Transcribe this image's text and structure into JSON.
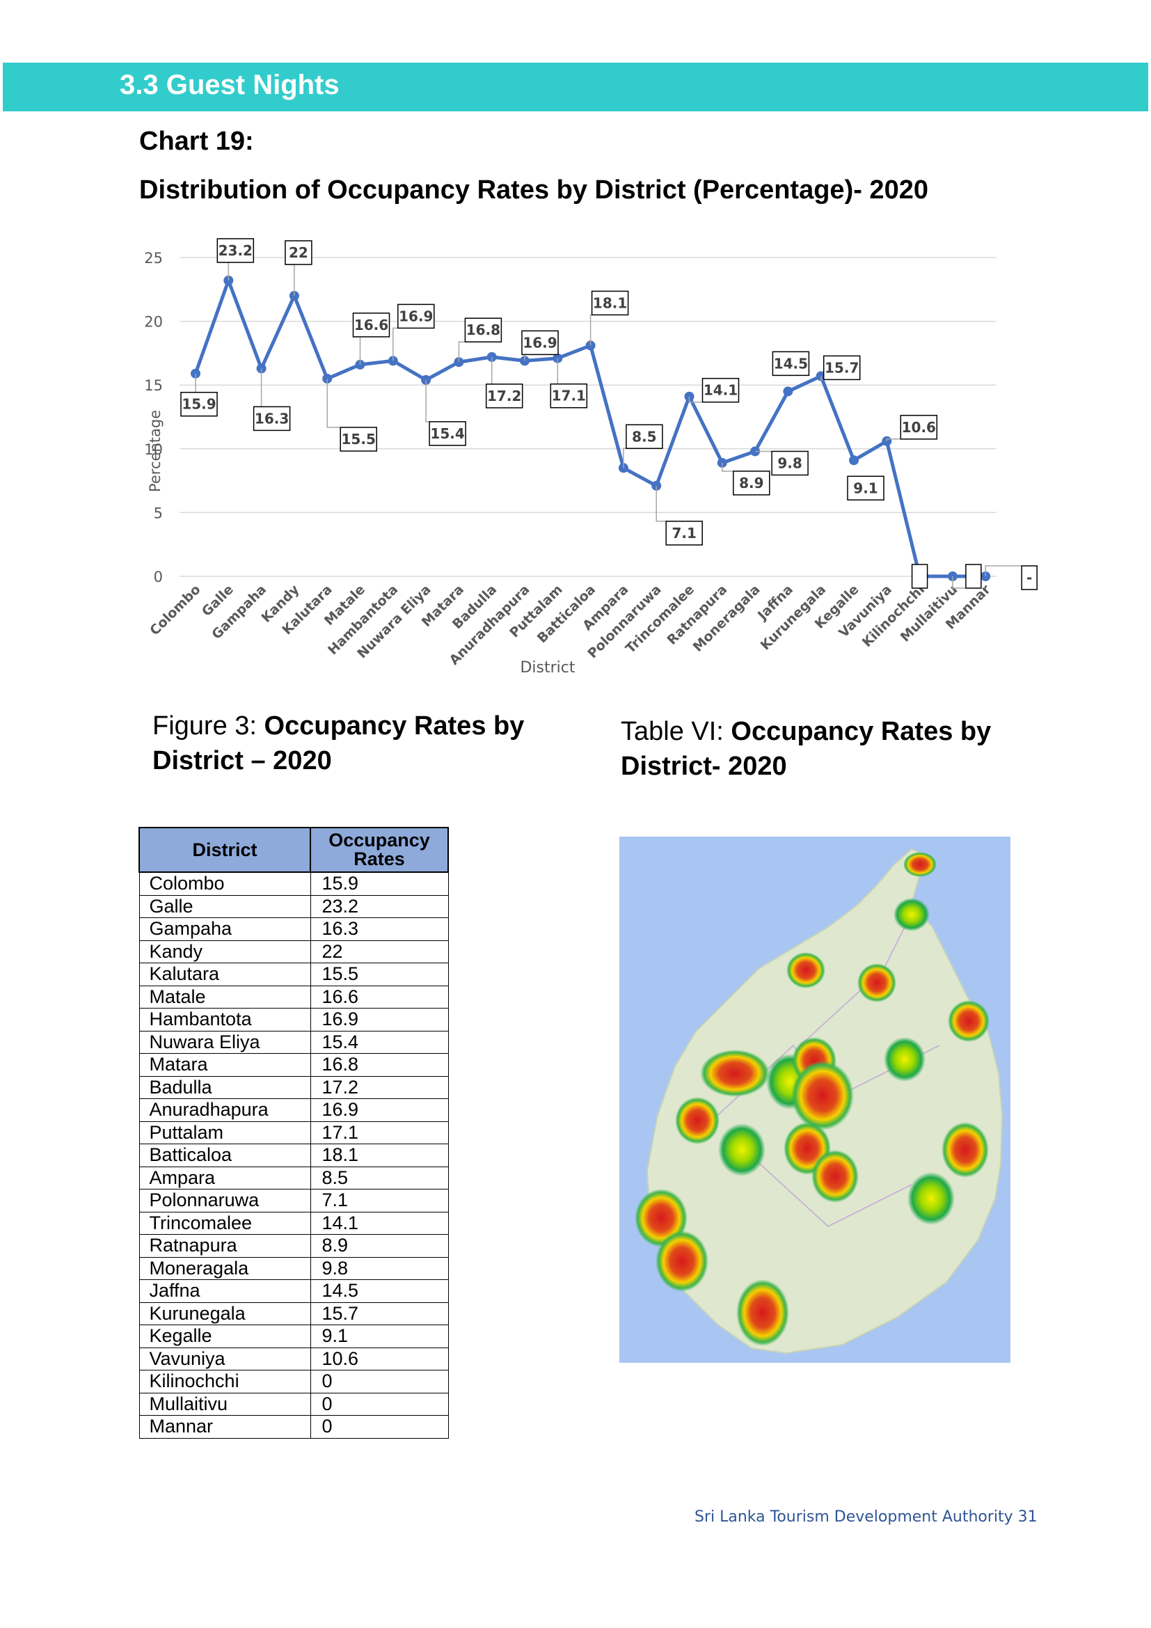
{
  "section": {
    "title": "3.3 Guest Nights"
  },
  "chart_heading": {
    "number": "Chart 19:",
    "title": "Distribution of Occupancy Rates by District (Percentage)- 2020"
  },
  "chart_data": {
    "type": "line",
    "xlabel": "District",
    "ylabel": "Percentage",
    "ylim": [
      0,
      25
    ],
    "yticks": [
      0,
      5,
      10,
      15,
      20,
      25
    ],
    "grid": true,
    "line_color": "#4472c4",
    "categories": [
      "Colombo",
      "Galle",
      "Gampaha",
      "Kandy",
      "Kalutara",
      "Matale",
      "Hambantota",
      "Nuwara Eliya",
      "Matara",
      "Badulla",
      "Anuradhapura",
      "Puttalam",
      "Batticaloa",
      "Ampara",
      "Polonnaruwa",
      "Trincomalee",
      "Ratnapura",
      "Moneragala",
      "Jaffna",
      "Kurunegala",
      "Kegalle",
      "Vavuniya",
      "Kilinochchi",
      "Mullaitivu",
      "Mannar"
    ],
    "values": [
      15.9,
      23.2,
      16.3,
      22,
      15.5,
      16.6,
      16.9,
      15.4,
      16.8,
      17.2,
      16.9,
      17.1,
      18.1,
      8.5,
      7.1,
      14.1,
      8.9,
      9.8,
      14.5,
      15.7,
      9.1,
      10.6,
      0,
      0,
      0
    ],
    "data_labels": [
      "15.9",
      "23.2",
      "16.3",
      "22",
      "15.5",
      "16.6",
      "16.9",
      "15.4",
      "16.8",
      "17.2",
      "16.9",
      "17.1",
      "18.1",
      "8.5",
      "7.1",
      "14.1",
      "8.9",
      "9.8",
      "14.5",
      "15.7",
      "9.1",
      "10.6",
      "",
      "",
      "-"
    ]
  },
  "captions": {
    "figure_prefix": "Figure 3: ",
    "figure_bold": "Occupancy Rates by District – 2020",
    "table_prefix": "Table VI: ",
    "table_bold": "Occupancy Rates by District- 2020"
  },
  "table": {
    "headers": [
      "District",
      "Occupancy Rates"
    ],
    "rows": [
      [
        "Colombo",
        "15.9"
      ],
      [
        "Galle",
        "23.2"
      ],
      [
        "Gampaha",
        "16.3"
      ],
      [
        "Kandy",
        "22"
      ],
      [
        "Kalutara",
        "15.5"
      ],
      [
        "Matale",
        "16.6"
      ],
      [
        "Hambantota",
        "16.9"
      ],
      [
        "Nuwara Eliya",
        "15.4"
      ],
      [
        "Matara",
        "16.8"
      ],
      [
        "Badulla",
        "17.2"
      ],
      [
        "Anuradhapura",
        "16.9"
      ],
      [
        "Puttalam",
        "17.1"
      ],
      [
        "Batticaloa",
        "18.1"
      ],
      [
        "Ampara",
        "8.5"
      ],
      [
        "Polonnaruwa",
        "7.1"
      ],
      [
        "Trincomalee",
        "14.1"
      ],
      [
        "Ratnapura",
        "8.9"
      ],
      [
        "Moneragala",
        "9.8"
      ],
      [
        "Jaffna",
        "14.5"
      ],
      [
        "Kurunegala",
        "15.7"
      ],
      [
        "Kegalle",
        "9.1"
      ],
      [
        "Vavuniya",
        "10.6"
      ],
      [
        "Kilinochchi",
        "0"
      ],
      [
        "Mullaitivu",
        "0"
      ],
      [
        "Mannar",
        "0"
      ]
    ]
  },
  "map": {
    "ocean_color": "#a9c6f2",
    "land_color": "#dfe8cf"
  },
  "footer": {
    "text": "Sri Lanka Tourism Development Authority 31"
  }
}
